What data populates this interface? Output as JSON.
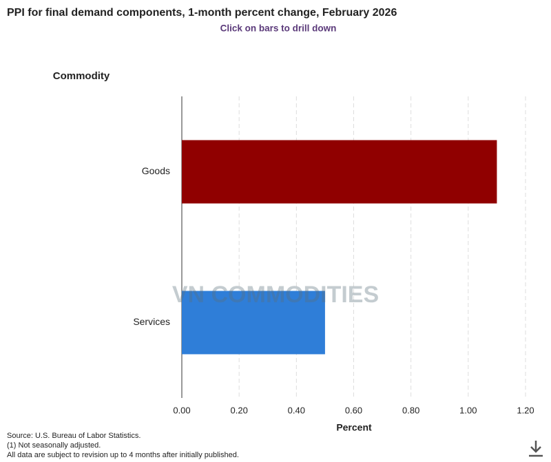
{
  "chart_data": {
    "type": "hbar",
    "title": "PPI for final demand components, 1-month percent change, February 2026",
    "subtitle": "Click on bars to drill down",
    "y_axis_label": "Commodity",
    "x_axis_label": "Percent",
    "categories": [
      "Goods",
      "Services"
    ],
    "values": [
      1.1,
      0.5
    ],
    "colors": [
      "#900000",
      "#2f7ed8"
    ],
    "xlim": [
      0,
      1.2
    ],
    "xticks": [
      {
        "value": 0,
        "label": "0.00"
      },
      {
        "value": 0.2,
        "label": "0.20"
      },
      {
        "value": 0.4,
        "label": "0.40"
      },
      {
        "value": 0.6,
        "label": "0.60"
      },
      {
        "value": 0.8,
        "label": "0.80"
      },
      {
        "value": 1.0,
        "label": "1.00"
      },
      {
        "value": 1.2,
        "label": "1.20"
      }
    ],
    "grid": true
  },
  "watermark": "VN COMMODITIES",
  "notes": [
    "Source: U.S. Bureau of Labor Statistics.",
    "(1) Not seasonally adjusted.",
    "All data are subject to revision up to 4 months after initially published."
  ]
}
